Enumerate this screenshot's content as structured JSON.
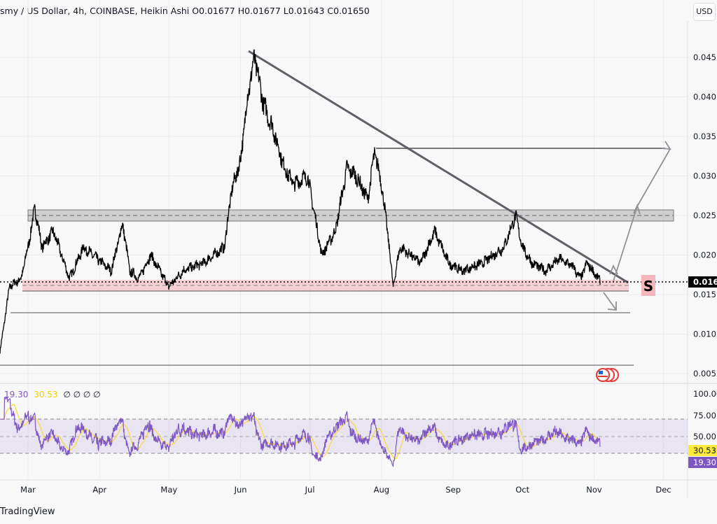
{
  "header": {
    "legend": "smy / US Dollar, 4h, COINBASE, Heikin Ashi  O0.01677  H0.01677  L0.01643  C0.01650",
    "currency_button": "USD"
  },
  "rsi_legend": {
    "rsi": "19.30",
    "ma": "30.53",
    "extra": "∅ ∅ ∅ ∅",
    "rsi_color": "#7e57c2",
    "ma_color": "#fdd835"
  },
  "price_axis": {
    "ticks": [
      "0.045",
      "0.040",
      "0.035",
      "0.030",
      "0.025",
      "0.020",
      "0.015",
      "0.010",
      "0.005"
    ],
    "current": "0.016"
  },
  "rsi_axis": {
    "ticks": [
      "100.00",
      "75.00",
      "50.00"
    ],
    "ma_badge": "30.53",
    "rsi_badge": "19.30"
  },
  "time_axis": [
    "Mar",
    "Apr",
    "May",
    "Jun",
    "Jul",
    "Aug",
    "Sep",
    "Oct",
    "Nov",
    "Dec"
  ],
  "signal_label": "S",
  "footer": "TradingView",
  "chart_data": {
    "type": "line",
    "price_series": [
      [
        "Feb 17",
        0.006
      ],
      [
        "Feb 20",
        0.012
      ],
      [
        "Feb 22",
        0.016
      ],
      [
        "Feb 27",
        0.017
      ],
      [
        "Mar 1",
        0.021
      ],
      [
        "Mar 4",
        0.026
      ],
      [
        "Mar 7",
        0.021
      ],
      [
        "Mar 12",
        0.023
      ],
      [
        "Mar 19",
        0.017
      ],
      [
        "Mar 25",
        0.021
      ],
      [
        "Apr 2",
        0.019
      ],
      [
        "Apr 6",
        0.018
      ],
      [
        "Apr 11",
        0.024
      ],
      [
        "Apr 14",
        0.018
      ],
      [
        "Apr 18",
        0.017
      ],
      [
        "Apr 23",
        0.02
      ],
      [
        "May 1",
        0.016
      ],
      [
        "May 7",
        0.018
      ],
      [
        "May 16",
        0.019
      ],
      [
        "May 25",
        0.021
      ],
      [
        "May 28",
        0.028
      ],
      [
        "Jun 1",
        0.032
      ],
      [
        "Jun 4",
        0.04
      ],
      [
        "Jun 7",
        0.045
      ],
      [
        "Jun 11",
        0.039
      ],
      [
        "Jun 15",
        0.036
      ],
      [
        "Jun 20",
        0.031
      ],
      [
        "Jun 24",
        0.029
      ],
      [
        "Jun 30",
        0.03
      ],
      [
        "Jul 5",
        0.022
      ],
      [
        "Jul 6",
        0.02
      ],
      [
        "Jul 12",
        0.023
      ],
      [
        "Jul 17",
        0.031
      ],
      [
        "Jul 21",
        0.03
      ],
      [
        "Jul 26",
        0.027
      ],
      [
        "Jul 29",
        0.033
      ],
      [
        "Aug 1",
        0.029
      ],
      [
        "Aug 4",
        0.022
      ],
      [
        "Aug 6",
        0.016
      ],
      [
        "Aug 9",
        0.021
      ],
      [
        "Aug 18",
        0.019
      ],
      [
        "Aug 24",
        0.023
      ],
      [
        "Aug 30",
        0.019
      ],
      [
        "Sep 5",
        0.018
      ],
      [
        "Sep 14",
        0.019
      ],
      [
        "Sep 23",
        0.021
      ],
      [
        "Sep 28",
        0.025
      ],
      [
        "Oct 1",
        0.021
      ],
      [
        "Oct 5",
        0.019
      ],
      [
        "Oct 11",
        0.018
      ],
      [
        "Oct 17",
        0.0195
      ],
      [
        "Oct 23",
        0.0185
      ],
      [
        "Oct 26",
        0.017
      ],
      [
        "Oct 29",
        0.019
      ],
      [
        "Nov 4",
        0.0165
      ]
    ],
    "resistance_zone": [
      0.0245,
      0.0255
    ],
    "support_zone": [
      0.0155,
      0.0165
    ],
    "price_range": [
      0.004,
      0.049
    ],
    "rsi_range": [
      0,
      100
    ],
    "rsi_bands": [
      30,
      70
    ]
  }
}
